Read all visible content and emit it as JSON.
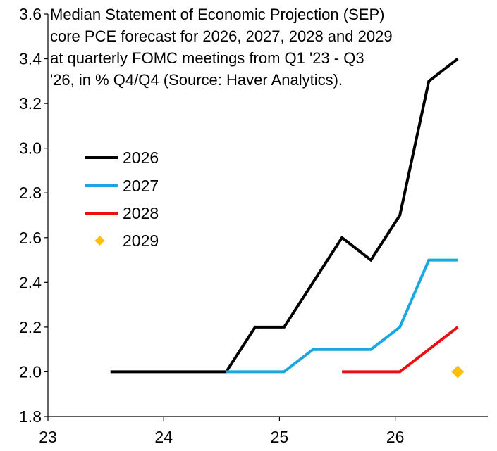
{
  "chart_data": {
    "type": "line",
    "title_lines": [
      "Median Statement of Economic Projection (SEP)",
      "core PCE forecast for 2026, 2027, 2028 and 2029",
      "at quarterly FOMC meetings from Q1 '23 - Q3",
      "'26, in % Q4/Q4 (Source: Haver Analytics)."
    ],
    "xlabel": "",
    "ylabel": "",
    "xlim": [
      2023,
      2026.8
    ],
    "ylim": [
      1.8,
      3.6
    ],
    "x_ticks": [
      {
        "value": 2023,
        "label": "23"
      },
      {
        "value": 2024,
        "label": "24"
      },
      {
        "value": 2025,
        "label": "25"
      },
      {
        "value": 2026,
        "label": "26"
      }
    ],
    "y_ticks": [
      {
        "value": 1.8,
        "label": "1.8"
      },
      {
        "value": 2.0,
        "label": "2.0"
      },
      {
        "value": 2.2,
        "label": "2.2"
      },
      {
        "value": 2.4,
        "label": "2.4"
      },
      {
        "value": 2.6,
        "label": "2.6"
      },
      {
        "value": 2.8,
        "label": "2.8"
      },
      {
        "value": 3.0,
        "label": "3.0"
      },
      {
        "value": 3.2,
        "label": "3.2"
      },
      {
        "value": 3.4,
        "label": "3.4"
      },
      {
        "value": 3.6,
        "label": "3.6"
      }
    ],
    "grid": false,
    "legend_position": "left",
    "series": [
      {
        "name": "2026",
        "color": "#000000",
        "style": "line",
        "points": [
          {
            "x": 2023.54,
            "y": 2.0
          },
          {
            "x": 2024.54,
            "y": 2.0
          },
          {
            "x": 2024.79,
            "y": 2.2
          },
          {
            "x": 2025.04,
            "y": 2.2
          },
          {
            "x": 2025.54,
            "y": 2.6
          },
          {
            "x": 2025.79,
            "y": 2.5
          },
          {
            "x": 2026.04,
            "y": 2.7
          },
          {
            "x": 2026.29,
            "y": 3.3
          },
          {
            "x": 2026.54,
            "y": 3.4
          }
        ]
      },
      {
        "name": "2027",
        "color": "#1aa7e0",
        "style": "line",
        "points": [
          {
            "x": 2024.54,
            "y": 2.0
          },
          {
            "x": 2025.04,
            "y": 2.0
          },
          {
            "x": 2025.29,
            "y": 2.1
          },
          {
            "x": 2025.54,
            "y": 2.1
          },
          {
            "x": 2025.79,
            "y": 2.1
          },
          {
            "x": 2026.04,
            "y": 2.2
          },
          {
            "x": 2026.29,
            "y": 2.5
          },
          {
            "x": 2026.54,
            "y": 2.5
          }
        ]
      },
      {
        "name": "2028",
        "color": "#e81010",
        "style": "line",
        "points": [
          {
            "x": 2025.54,
            "y": 2.0
          },
          {
            "x": 2025.79,
            "y": 2.0
          },
          {
            "x": 2026.04,
            "y": 2.0
          },
          {
            "x": 2026.29,
            "y": 2.1
          },
          {
            "x": 2026.54,
            "y": 2.2
          }
        ]
      },
      {
        "name": "2029",
        "color": "#ffc000",
        "style": "marker",
        "points": [
          {
            "x": 2026.54,
            "y": 2.0
          }
        ]
      }
    ]
  }
}
